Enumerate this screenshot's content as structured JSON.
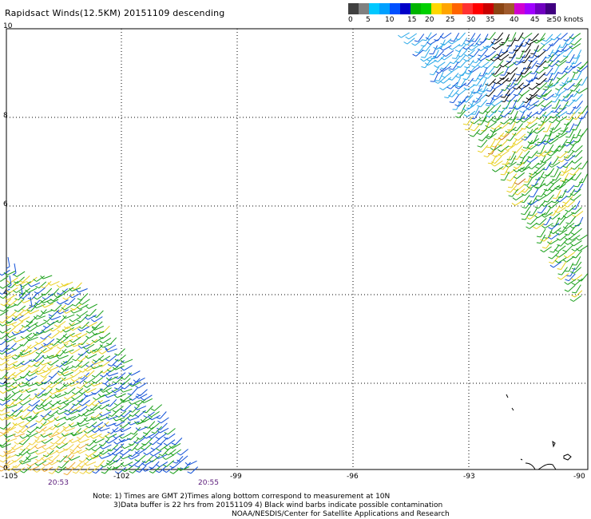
{
  "title": "Rapidsact Winds(12.5KM) 20151109 descending",
  "legend": {
    "colors": [
      "#404040",
      "#808080",
      "#00c8ff",
      "#00a0ff",
      "#0050ff",
      "#0000c8",
      "#00b400",
      "#00d000",
      "#ffd700",
      "#ffa500",
      "#ff6400",
      "#ff3232",
      "#ff0000",
      "#c80000",
      "#8b4513",
      "#a05a2c",
      "#d000d0",
      "#a000ff",
      "#7000c0",
      "#400080"
    ],
    "labels": [
      "0",
      "5",
      "10",
      "15",
      "20",
      "25",
      "30",
      "35",
      "40",
      "45",
      "≥50 knots"
    ]
  },
  "axes": {
    "y_ticks": [
      "10",
      "8",
      "6",
      "4",
      "2",
      "0"
    ],
    "x_ticks": [
      "-105",
      "-102",
      "-99",
      "-96",
      "-93",
      "-90"
    ]
  },
  "times": [
    "20:53",
    "20:55"
  ],
  "notes": [
    "Note: 1) Times are GMT 2)Times along bottom correspond to measurement at 10N",
    "3)Data buffer is 22 hrs from 20151109 4) Black wind barbs indicate possible contamination",
    "NOAA/NESDIS/Center for Satellite Applications and Research"
  ]
}
